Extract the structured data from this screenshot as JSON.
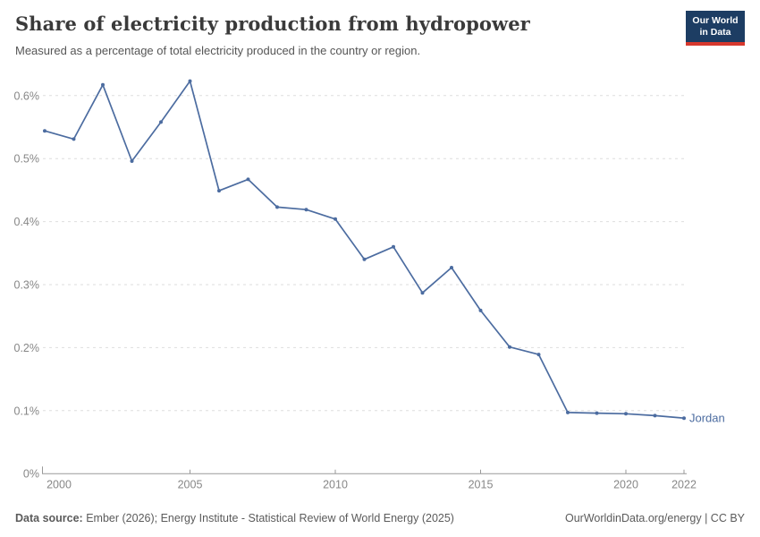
{
  "header": {
    "title": "Share of electricity production from hydropower",
    "subtitle": "Measured as a percentage of total electricity produced in the country or region.",
    "logo": {
      "line1": "Our World",
      "line2": "in Data"
    }
  },
  "footer": {
    "source_label": "Data source:",
    "source_text": " Ember (2026); Energy Institute - Statistical Review of World Energy (2025)",
    "rights": "OurWorldinData.org/energy | CC BY"
  },
  "colors": {
    "line": "#4C6CA0",
    "entity_label": "#4C6CA0",
    "grid": "#dedede",
    "axis": "#999999",
    "tick_label": "#878787",
    "logo_bg": "#1D3D63",
    "logo_red": "#D7382D"
  },
  "chart_data": {
    "type": "line",
    "title": "Share of electricity production from hydropower",
    "subtitle": "Measured as a percentage of total electricity produced in the country or region.",
    "entity": "Jordan",
    "unit": "%",
    "x": [
      2000,
      2001,
      2002,
      2003,
      2004,
      2005,
      2006,
      2007,
      2008,
      2009,
      2010,
      2011,
      2012,
      2013,
      2014,
      2015,
      2016,
      2017,
      2018,
      2019,
      2020,
      2021,
      2022
    ],
    "values": [
      0.544,
      0.531,
      0.617,
      0.496,
      0.558,
      0.623,
      0.449,
      0.467,
      0.423,
      0.419,
      0.404,
      0.34,
      0.36,
      0.287,
      0.327,
      0.259,
      0.201,
      0.189,
      0.097,
      0.096,
      0.095,
      0.092,
      0.088
    ],
    "xlim": [
      2000,
      2022
    ],
    "ylim": [
      0,
      0.65
    ],
    "xticks": [
      2000,
      2005,
      2010,
      2015,
      2020,
      2022
    ],
    "yticks": [
      0,
      0.1,
      0.2,
      0.3,
      0.4,
      0.5,
      0.6
    ],
    "ytick_labels": [
      "0%",
      "0.1%",
      "0.2%",
      "0.3%",
      "0.4%",
      "0.5%",
      "0.6%"
    ],
    "grid": true,
    "grid_style": "dashed",
    "legend_position": "end-of-line",
    "line_color": "#4C6CA0"
  }
}
